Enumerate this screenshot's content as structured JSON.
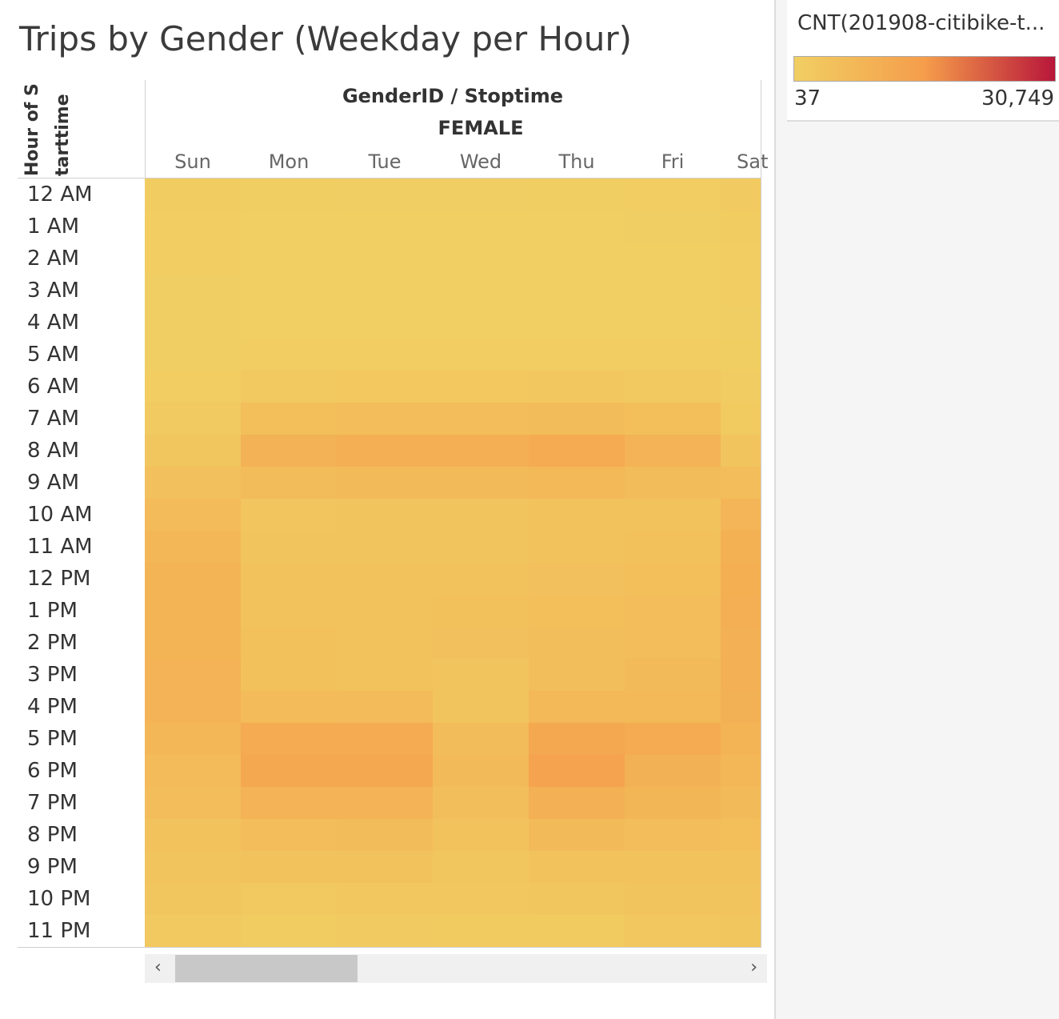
{
  "title": "Trips by Gender (Weekday per Hour)",
  "row_header": {
    "line1": "Hour of S",
    "line2": "tarttime"
  },
  "column_header": {
    "title": "GenderID / Stoptime",
    "gender": "FEMALE"
  },
  "legend": {
    "title": "CNT(201908-citibike-t...",
    "min_label": "37",
    "max_label": "30,749",
    "min": 37,
    "max": 30749,
    "colors": [
      "#f1cf63",
      "#f59d4b",
      "#b8163a"
    ]
  },
  "scrollbar": {
    "left_arrow": "‹",
    "right_arrow": "›"
  },
  "chart_data": {
    "type": "heatmap",
    "title": "Trips by Gender (Weekday per Hour)",
    "xlabel": "GenderID / Stoptime",
    "ylabel": "Hour of Starttime",
    "facet": "FEMALE",
    "x": [
      "Sun",
      "Mon",
      "Tue",
      "Wed",
      "Thu",
      "Fri",
      "Sat"
    ],
    "y": [
      "12 AM",
      "1 AM",
      "2 AM",
      "3 AM",
      "4 AM",
      "5 AM",
      "6 AM",
      "7 AM",
      "8 AM",
      "9 AM",
      "10 AM",
      "11 AM",
      "12 PM",
      "1 PM",
      "2 PM",
      "3 PM",
      "4 PM",
      "5 PM",
      "6 PM",
      "7 PM",
      "8 PM",
      "9 PM",
      "10 PM",
      "11 PM"
    ],
    "values": [
      [
        1100,
        400,
        300,
        350,
        400,
        500,
        1300
      ],
      [
        800,
        150,
        120,
        130,
        150,
        250,
        1000
      ],
      [
        500,
        80,
        60,
        70,
        80,
        120,
        700
      ],
      [
        350,
        60,
        50,
        50,
        60,
        80,
        500
      ],
      [
        250,
        100,
        90,
        90,
        100,
        110,
        350
      ],
      [
        300,
        500,
        500,
        500,
        500,
        500,
        400
      ],
      [
        600,
        2200,
        2300,
        2300,
        2400,
        2100,
        900
      ],
      [
        1200,
        5000,
        5500,
        5600,
        6000,
        5000,
        1700
      ],
      [
        2800,
        9000,
        9800,
        9800,
        11000,
        8500,
        3400
      ],
      [
        4600,
        6000,
        6500,
        6600,
        7000,
        6000,
        5600
      ],
      [
        6200,
        3200,
        3300,
        3400,
        3700,
        3800,
        8000
      ],
      [
        7400,
        3400,
        3300,
        3400,
        3900,
        4300,
        9400
      ],
      [
        8200,
        3900,
        3700,
        4100,
        4700,
        5100,
        10000
      ],
      [
        8400,
        4100,
        3900,
        4400,
        5100,
        5600,
        9800
      ],
      [
        8400,
        4200,
        3900,
        4500,
        5400,
        5700,
        9600
      ],
      [
        8600,
        4400,
        4000,
        3400,
        5200,
        6500,
        9500
      ],
      [
        8500,
        6200,
        6100,
        3500,
        7000,
        7200,
        9200
      ],
      [
        7500,
        11000,
        11200,
        6000,
        12000,
        11000,
        8200
      ],
      [
        6200,
        12000,
        12000,
        6500,
        13500,
        9200,
        7400
      ],
      [
        5600,
        8500,
        8500,
        5400,
        9500,
        7600,
        6500
      ],
      [
        4100,
        5700,
        5800,
        3700,
        6500,
        5600,
        5100
      ],
      [
        3300,
        3600,
        3900,
        2700,
        4000,
        4100,
        4000
      ],
      [
        2700,
        2100,
        2600,
        2500,
        2900,
        3500,
        3300
      ],
      [
        2200,
        1100,
        1200,
        1700,
        1700,
        2600,
        2900
      ]
    ],
    "color_range": [
      37,
      30749
    ],
    "grid": false
  }
}
